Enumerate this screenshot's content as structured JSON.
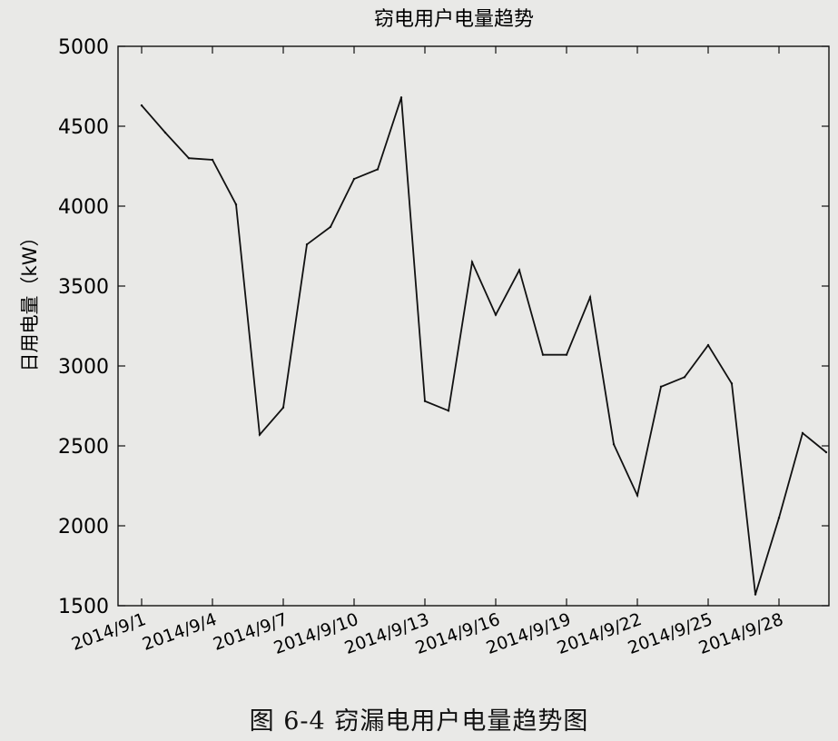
{
  "chart_data": {
    "type": "line",
    "title": "窃电用户电量趋势",
    "ylabel": "日用电量（kW）",
    "xlabel": "",
    "ylim": [
      1500,
      5000
    ],
    "yticks": [
      1500,
      2000,
      2500,
      3000,
      3500,
      4000,
      4500,
      5000
    ],
    "xticks": [
      "2014/9/1",
      "2014/9/4",
      "2014/9/7",
      "2014/9/10",
      "2014/9/13",
      "2014/9/16",
      "2014/9/19",
      "2014/9/22",
      "2014/9/25",
      "2014/9/28"
    ],
    "x": [
      "2014/9/1",
      "2014/9/2",
      "2014/9/3",
      "2014/9/4",
      "2014/9/5",
      "2014/9/6",
      "2014/9/7",
      "2014/9/8",
      "2014/9/9",
      "2014/9/10",
      "2014/9/11",
      "2014/9/12",
      "2014/9/13",
      "2014/9/14",
      "2014/9/15",
      "2014/9/16",
      "2014/9/17",
      "2014/9/18",
      "2014/9/19",
      "2014/9/20",
      "2014/9/21",
      "2014/9/22",
      "2014/9/23",
      "2014/9/24",
      "2014/9/25",
      "2014/9/26",
      "2014/9/27",
      "2014/9/28",
      "2014/9/29",
      "2014/9/30"
    ],
    "series": [
      {
        "values": [
          4630,
          4460,
          4300,
          4290,
          4010,
          2570,
          2740,
          3760,
          3870,
          4170,
          4230,
          4680,
          2780,
          2720,
          3650,
          3320,
          3600,
          3070,
          3070,
          3430,
          2510,
          2190,
          2870,
          2930,
          3130,
          2890,
          1570,
          2050,
          2580,
          2460
        ]
      }
    ],
    "grid": false,
    "legend": "none",
    "line_color": "#111111"
  },
  "caption": "图 6-4   窃漏电用户电量趋势图"
}
